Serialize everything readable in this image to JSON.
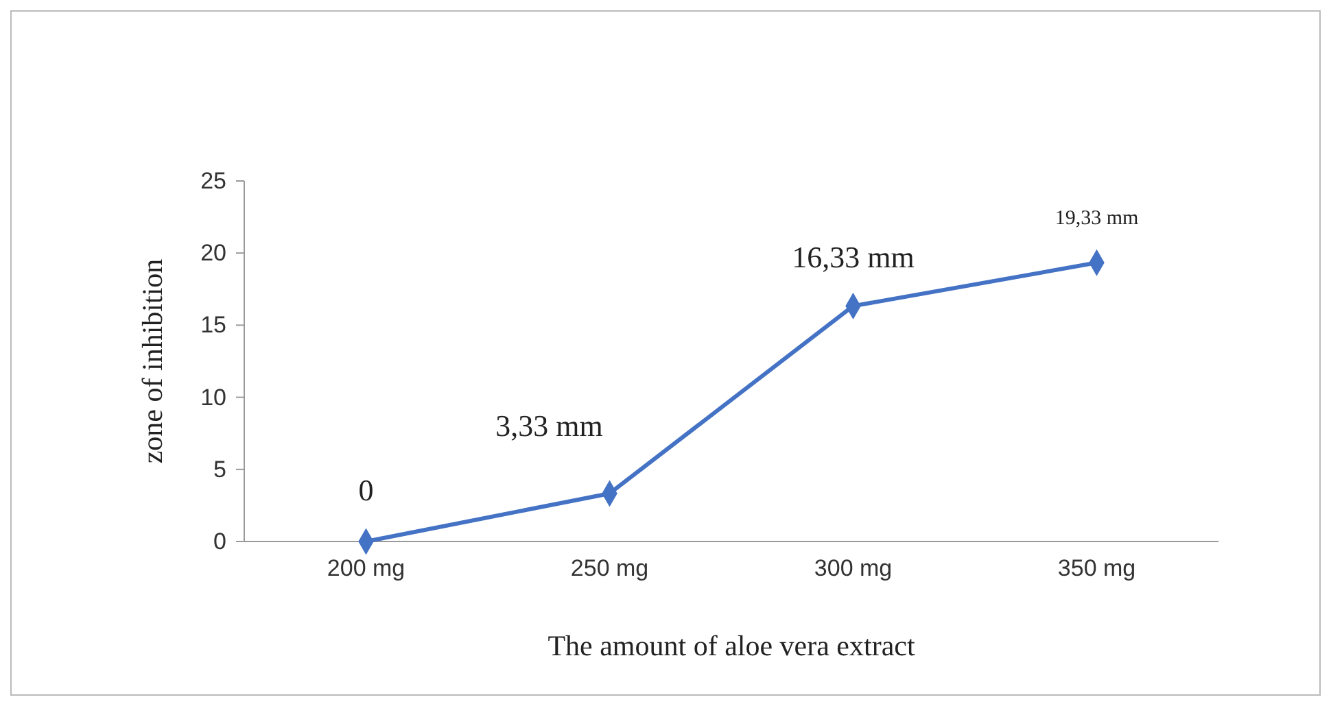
{
  "chart_data": {
    "type": "line",
    "xlabel": "The amount of aloe vera extract",
    "ylabel": "zone of inhibition",
    "categories": [
      "200 mg",
      "250 mg",
      "300 mg",
      "350 mg"
    ],
    "series": [
      {
        "color": "#4472c4",
        "values": [
          0,
          3.33,
          16.33,
          19.33
        ],
        "value_labels": [
          "0",
          "3,33 mm",
          "16,33 mm",
          "19,33 mm"
        ]
      }
    ],
    "ylim": [
      0,
      25
    ],
    "yticks": [
      0,
      5,
      10,
      15,
      20,
      25
    ],
    "grid": false,
    "marker": "diamond",
    "line_style": "solid"
  }
}
